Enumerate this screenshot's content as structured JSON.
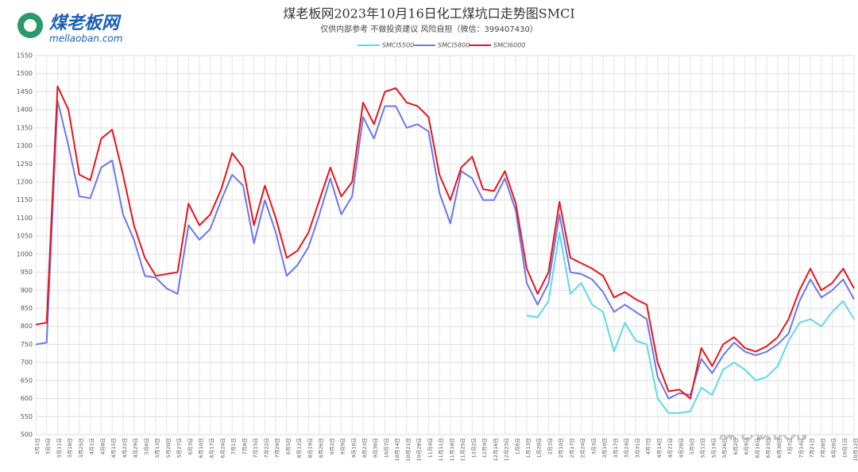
{
  "logo": {
    "name": "煤老板网",
    "url": "mellaoban.com"
  },
  "watermark": "煤老板快讯",
  "chart_data": {
    "type": "line",
    "title": "煤老板网2023年10月16日化工煤坑口走势图SMCI",
    "subtitle": "仅供内部参考 不做投资建议 风险自担（微信：399407430）",
    "categories": [
      "3月1日",
      "3月5日",
      "3月11日",
      "3月18日",
      "3月25日",
      "4月1日",
      "4月8日",
      "4月15日",
      "4月22日",
      "4月29日",
      "5月6日",
      "5月13日",
      "5月20日",
      "5月27日",
      "6月3日",
      "6月10日",
      "6月17日",
      "6月24日",
      "7月1日",
      "7月8日",
      "7月15日",
      "7月22日",
      "7月29日",
      "8月5日",
      "8月12日",
      "8月19日",
      "8月26日",
      "9月2日",
      "9月9日",
      "9月16日",
      "9月23日",
      "9月30日",
      "10月7日",
      "10月14日",
      "10月21日",
      "10月28日",
      "11月4日",
      "11月11日",
      "11月18日",
      "11月25日",
      "12月2日",
      "12月9日",
      "12月16日",
      "12月23日",
      "1月6日",
      "1月13日",
      "1月20日",
      "2月3日",
      "2月10日",
      "2月17日",
      "2月24日",
      "3月3日",
      "3月10日",
      "3月17日",
      "3月24日",
      "3月31日",
      "4月7日",
      "4月14日",
      "4月21日",
      "4月28日",
      "5月5日",
      "5月12日",
      "5月19日",
      "5月26日",
      "6月2日",
      "6月9日",
      "6月16日",
      "6月23日",
      "6月30日",
      "7月7日",
      "7月14日",
      "7月21日",
      "7月28日",
      "9月20日",
      "10月1日",
      "10月12日"
    ],
    "series": [
      {
        "name": "SMCI5500",
        "color": "#5fd9e6",
        "values": [
          null,
          null,
          null,
          null,
          null,
          null,
          null,
          null,
          null,
          null,
          null,
          null,
          null,
          null,
          null,
          null,
          null,
          null,
          null,
          null,
          null,
          null,
          null,
          null,
          null,
          null,
          null,
          null,
          null,
          null,
          null,
          null,
          null,
          null,
          null,
          null,
          null,
          null,
          null,
          null,
          null,
          null,
          null,
          null,
          null,
          830,
          825,
          870,
          1060,
          890,
          920,
          860,
          840,
          730,
          810,
          760,
          750,
          600,
          560,
          560,
          565,
          630,
          610,
          680,
          700,
          680,
          650,
          660,
          690,
          760,
          810,
          820,
          800,
          840,
          870,
          820
        ]
      },
      {
        "name": "SMCI5800",
        "color": "#6b78e8",
        "values": [
          750,
          755,
          1425,
          1300,
          1160,
          1155,
          1240,
          1260,
          1110,
          1040,
          940,
          935,
          905,
          890,
          1080,
          1040,
          1070,
          1150,
          1220,
          1190,
          1030,
          1150,
          1060,
          940,
          970,
          1020,
          1110,
          1210,
          1110,
          1160,
          1380,
          1320,
          1410,
          1410,
          1350,
          1360,
          1340,
          1170,
          1085,
          1230,
          1210,
          1150,
          1150,
          1210,
          1120,
          920,
          860,
          920,
          1110,
          950,
          945,
          930,
          895,
          840,
          860,
          840,
          820,
          660,
          600,
          615,
          610,
          710,
          670,
          720,
          755,
          730,
          720,
          730,
          750,
          780,
          870,
          930,
          880,
          900,
          930,
          875
        ]
      },
      {
        "name": "SMCI6000",
        "color": "#e8141b",
        "values": [
          805,
          810,
          1465,
          1400,
          1220,
          1205,
          1320,
          1345,
          1220,
          1080,
          990,
          940,
          945,
          950,
          1140,
          1080,
          1110,
          1180,
          1280,
          1240,
          1080,
          1190,
          1100,
          990,
          1010,
          1060,
          1150,
          1240,
          1160,
          1200,
          1420,
          1360,
          1450,
          1460,
          1420,
          1410,
          1380,
          1220,
          1150,
          1240,
          1270,
          1180,
          1175,
          1230,
          1140,
          960,
          890,
          950,
          1145,
          990,
          975,
          960,
          940,
          880,
          895,
          875,
          860,
          700,
          620,
          625,
          600,
          740,
          690,
          750,
          770,
          740,
          730,
          745,
          770,
          820,
          900,
          960,
          900,
          920,
          960,
          905
        ]
      }
    ],
    "ylim": [
      500,
      1550
    ],
    "yticks": [
      500,
      550,
      600,
      650,
      700,
      750,
      800,
      850,
      900,
      950,
      1000,
      1050,
      1100,
      1150,
      1200,
      1250,
      1300,
      1350,
      1400,
      1450,
      1500,
      1550
    ],
    "grid": true
  }
}
